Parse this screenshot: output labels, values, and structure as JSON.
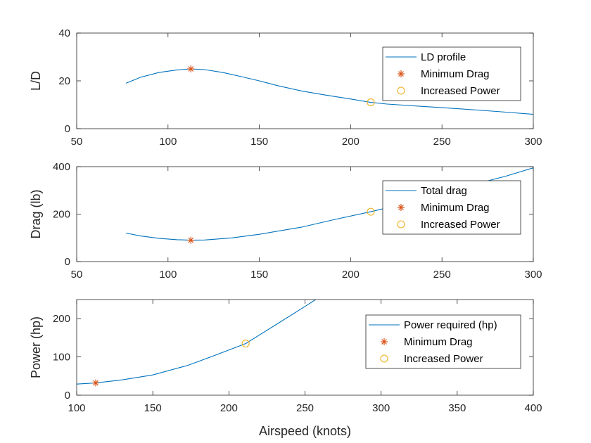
{
  "chart_data": [
    {
      "type": "line",
      "ylabel": "L/D",
      "xlabel": "",
      "xlim": [
        50,
        300
      ],
      "ylim": [
        0,
        40
      ],
      "xticks": [
        "50",
        "100",
        "150",
        "200",
        "250",
        "300"
      ],
      "yticks": [
        "0",
        "20",
        "40"
      ],
      "legend_position": "top-right",
      "series": [
        {
          "name": "LD profile",
          "kind": "line",
          "color": "#0072BD",
          "x": [
            77,
            85,
            95,
            105,
            112.5,
            120,
            130,
            140,
            150,
            160,
            173,
            185,
            200,
            211,
            220,
            240,
            260,
            280,
            300
          ],
          "y": [
            19,
            21.5,
            23.5,
            24.6,
            25,
            24.7,
            23.5,
            21.8,
            20,
            18,
            15.8,
            14.2,
            12.4,
            11,
            10.3,
            9.3,
            8.3,
            7.2,
            6
          ]
        },
        {
          "name": "Minimum Drag",
          "kind": "marker",
          "marker": "asterisk",
          "color": "#D95319",
          "x": [
            112.5
          ],
          "y": [
            25
          ]
        },
        {
          "name": "Increased Power",
          "kind": "marker",
          "marker": "circle",
          "color": "#EDB120",
          "x": [
            211
          ],
          "y": [
            11
          ]
        }
      ]
    },
    {
      "type": "line",
      "ylabel": "Drag (lb)",
      "xlabel": "",
      "xlim": [
        50,
        300
      ],
      "ylim": [
        0,
        400
      ],
      "xticks": [
        "50",
        "100",
        "150",
        "200",
        "250",
        "300"
      ],
      "yticks": [
        "0",
        "200",
        "400"
      ],
      "legend_position": "top-right",
      "series": [
        {
          "name": "Total drag",
          "kind": "line",
          "color": "#0072BD",
          "x": [
            77,
            85,
            95,
            105,
            112.5,
            120,
            135,
            150,
            173,
            190,
            211,
            230,
            250,
            270,
            285,
            300
          ],
          "y": [
            120,
            108,
            98,
            92,
            90,
            91,
            100,
            115,
            145,
            175,
            210,
            245,
            285,
            330,
            360,
            395
          ]
        },
        {
          "name": "Minimum Drag",
          "kind": "marker",
          "marker": "asterisk",
          "color": "#D95319",
          "x": [
            112.5
          ],
          "y": [
            90
          ]
        },
        {
          "name": "Increased Power",
          "kind": "marker",
          "marker": "circle",
          "color": "#EDB120",
          "x": [
            211
          ],
          "y": [
            210
          ]
        }
      ]
    },
    {
      "type": "line",
      "ylabel": "Power (hp)",
      "xlabel": "Airspeed (knots)",
      "xlim": [
        100,
        400
      ],
      "ylim": [
        0,
        250
      ],
      "xticks": [
        "100",
        "150",
        "200",
        "250",
        "300",
        "350",
        "400"
      ],
      "yticks": [
        "0",
        "100",
        "200"
      ],
      "legend_position": "top-right",
      "series": [
        {
          "name": "Power required (hp)",
          "kind": "line",
          "color": "#0072BD",
          "x": [
            100,
            112.5,
            130,
            150,
            173,
            190,
            211,
            230,
            250,
            257
          ],
          "y": [
            29,
            32,
            40,
            53,
            78,
            103,
            135,
            182,
            232,
            250
          ]
        },
        {
          "name": "Minimum Drag",
          "kind": "marker",
          "marker": "asterisk",
          "color": "#D95319",
          "x": [
            112.5
          ],
          "y": [
            32
          ]
        },
        {
          "name": "Increased Power",
          "kind": "marker",
          "marker": "circle",
          "color": "#EDB120",
          "x": [
            211
          ],
          "y": [
            135
          ]
        }
      ]
    }
  ]
}
